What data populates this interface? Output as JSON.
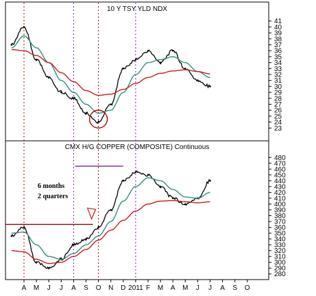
{
  "chart_data": [
    {
      "type": "line",
      "title": "10 Y TSY YLD NDX",
      "ylim": [
        22,
        42
      ],
      "y_ticks": [
        23,
        24,
        25,
        26,
        27,
        28,
        29,
        30,
        31,
        32,
        33,
        34,
        35,
        36,
        37,
        38,
        39,
        40,
        41
      ],
      "y_axis_side": "right",
      "grid": false,
      "x": [
        "Mar",
        "Apr",
        "May",
        "Jun",
        "Jul",
        "Aug",
        "Sep",
        "Oct",
        "Nov",
        "Dec",
        "Jan",
        "Feb",
        "Mar",
        "Apr",
        "May",
        "Jun",
        "Jul",
        "Aug",
        "Sep"
      ],
      "series": [
        {
          "role": "price",
          "color": "#000000",
          "values": [
            37,
            40,
            34.5,
            31.5,
            29,
            28,
            25.5,
            24,
            27,
            33,
            34.5,
            36,
            34,
            36,
            33,
            31,
            30,
            null,
            null
          ]
        },
        {
          "role": "short-ma",
          "color": "#2f8f7f",
          "values": [
            36.5,
            38.5,
            36.5,
            34,
            31,
            29,
            27,
            25.5,
            26,
            29,
            32,
            34,
            34.5,
            35,
            34,
            32.5,
            31.5,
            null,
            null
          ]
        },
        {
          "role": "long-ma",
          "color": "#cc1a1a",
          "values": [
            36.2,
            36,
            35.2,
            34,
            32.3,
            30.8,
            29.3,
            28.5,
            28.7,
            29.5,
            30.5,
            31.5,
            32.2,
            32.6,
            32.8,
            32.5,
            32.1,
            null,
            null
          ]
        }
      ],
      "annotations": {
        "circle_month": "Oct",
        "circle_value": 24.5,
        "circle_color": "#aa0000"
      }
    },
    {
      "type": "line",
      "title": "CMX H/G COPPER (COMPOSITE) Continuous",
      "ylim": [
        275,
        485
      ],
      "y_ticks": [
        280,
        290,
        300,
        310,
        320,
        330,
        340,
        350,
        360,
        370,
        380,
        390,
        400,
        410,
        420,
        430,
        440,
        450,
        460,
        470,
        480
      ],
      "y_axis_side": "right",
      "grid": false,
      "x": [
        "Mar",
        "Apr",
        "May",
        "Jun",
        "Jul",
        "Aug",
        "Sep",
        "Oct",
        "Nov",
        "Dec",
        "Jan",
        "Feb",
        "Mar",
        "Apr",
        "May",
        "Jun",
        "Jul",
        "Aug",
        "Sep"
      ],
      "series": [
        {
          "role": "price",
          "color": "#000000",
          "values": [
            345,
            360,
            300,
            290,
            305,
            330,
            340,
            360,
            390,
            440,
            455,
            450,
            430,
            410,
            400,
            410,
            440,
            null,
            null
          ]
        },
        {
          "role": "short-ma",
          "color": "#2f8f7f",
          "values": [
            350,
            352,
            330,
            310,
            305,
            315,
            330,
            345,
            370,
            405,
            430,
            445,
            440,
            425,
            412,
            410,
            420,
            null,
            null
          ]
        },
        {
          "role": "long-ma",
          "color": "#cc1a1a",
          "values": [
            320,
            318,
            305,
            298,
            300,
            310,
            322,
            338,
            355,
            372,
            388,
            400,
            405,
            406,
            404,
            402,
            404,
            null,
            null
          ]
        }
      ],
      "annotations": {
        "text_lines": [
          "6 months",
          "2 quarters"
        ],
        "support_level": 365,
        "support_from": "Mar",
        "support_to": "Oct",
        "resistance_level": 465,
        "resistance_from": "Dec",
        "resistance_to": "Aug",
        "support_color": "#aa0000",
        "resistance_color": "#7a1fa2",
        "arrow_month": "Oct",
        "arrow_color": "#cc1a1a"
      }
    }
  ],
  "x_axis": {
    "month_labels": [
      "A",
      "M",
      "J",
      "J",
      "A",
      "S",
      "O",
      "N",
      "D",
      "2011",
      "F",
      "M",
      "A",
      "M",
      "J",
      "J",
      "A",
      "S",
      "O"
    ],
    "dashed_markers": [
      {
        "month": "Apr",
        "color": "#aa0000"
      },
      {
        "month": "Oct",
        "color": "#aa0000"
      },
      {
        "month": "Jan",
        "color": "#7a1fa2"
      },
      {
        "month": "Aug",
        "color": "#7a1fa2"
      }
    ]
  }
}
